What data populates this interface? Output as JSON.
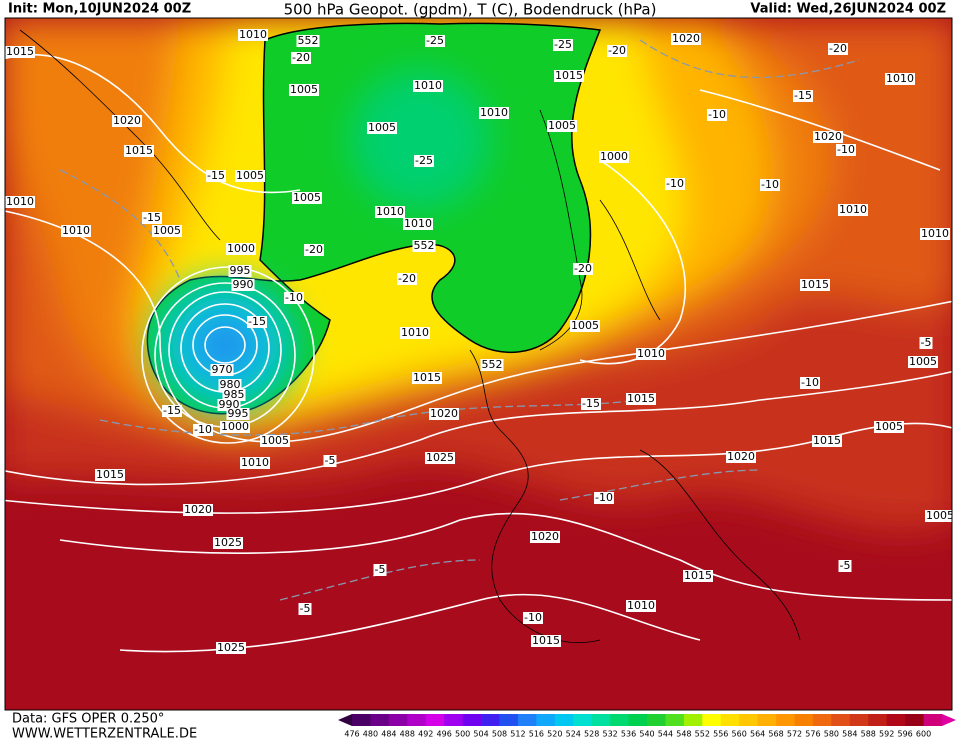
{
  "header": {
    "init": "Init: Mon,10JUN2024 00Z",
    "title": "500 hPa Geopot. (gpdm), T (C), Bodendruck (hPa)",
    "valid": "Valid: Wed,26JUN2024 00Z"
  },
  "footer": {
    "source": "Data: GFS OPER 0.250°",
    "site": "WWW.WETTERZENTRALE.DE"
  },
  "colorbar": {
    "levels": [
      476,
      480,
      484,
      488,
      492,
      496,
      500,
      504,
      508,
      512,
      516,
      520,
      524,
      528,
      532,
      536,
      540,
      544,
      548,
      552,
      556,
      560,
      564,
      568,
      572,
      576,
      580,
      584,
      588,
      592,
      596,
      600
    ],
    "colors": [
      "#4b0066",
      "#6a0088",
      "#8c00a8",
      "#b000c8",
      "#d400e8",
      "#a000f0",
      "#7000f0",
      "#4020f0",
      "#2050f0",
      "#2080f8",
      "#10a8f8",
      "#00c8f0",
      "#00e0d0",
      "#00e0a0",
      "#00d870",
      "#00d050",
      "#20d030",
      "#50e020",
      "#a0f000",
      "#ffff00",
      "#ffe000",
      "#ffc800",
      "#ffb000",
      "#ff9800",
      "#f88000",
      "#f06810",
      "#e05018",
      "#d03818",
      "#c02018",
      "#b00818",
      "#980018",
      "#d0007a"
    ]
  },
  "contour_labels": [
    "1015",
    "1010",
    "552",
    "-20",
    "-25",
    "-25",
    "-20",
    "1020",
    "-20",
    "1010",
    "1005",
    "1010",
    "1015",
    "1020",
    "1015",
    "1005",
    "1010",
    "1005",
    "-10",
    "-15",
    "1020",
    "-10",
    "1005",
    "-15",
    "1000",
    "-10",
    "-10",
    "1010",
    "1005",
    "-25",
    "1010",
    "1010",
    "-15",
    "1010",
    "1005",
    "1010",
    "1010",
    "1000",
    "-20",
    "552",
    "995",
    "990",
    "-20",
    "-20",
    "-10",
    "1015",
    "-15",
    "1010",
    "1005",
    "1010",
    "-5",
    "1005",
    "970",
    "552",
    "-10",
    "1015",
    "980",
    "985",
    "990",
    "1015",
    "-15",
    "-15",
    "995",
    "1020",
    "1000",
    "-10",
    "1005",
    "1005",
    "1015",
    "1020",
    "1025",
    "-5",
    "1010",
    "1015",
    "-10",
    "1020",
    "1005",
    "1020",
    "1025",
    "-5",
    "-5",
    "1015",
    "-5",
    "1010",
    "-10",
    "1015",
    "1025"
  ]
}
